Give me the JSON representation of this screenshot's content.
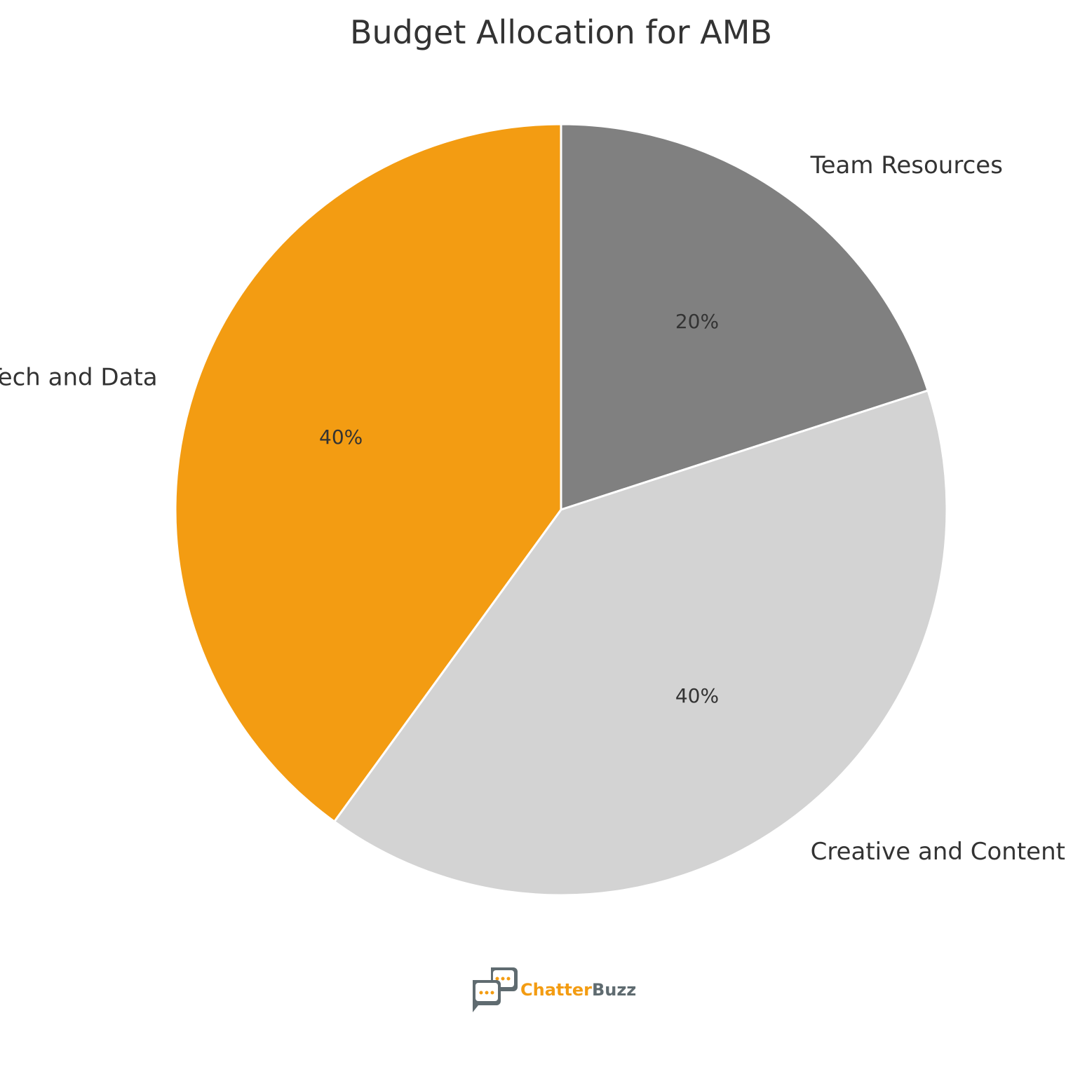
{
  "chart_data": {
    "type": "pie",
    "title": "Budget Allocation for AMB",
    "slices": [
      {
        "label": "Team Resources",
        "value": 20,
        "pct_label": "20%",
        "color": "#808080"
      },
      {
        "label": "Creative and Content",
        "value": 40,
        "pct_label": "40%",
        "color": "#d3d3d3"
      },
      {
        "label": "Tech and Data",
        "value": 40,
        "pct_label": "40%",
        "color": "#f39c12"
      }
    ],
    "start_angle": "12 o'clock",
    "direction": "clockwise",
    "edge_color": "#ffffff"
  },
  "logo": {
    "part1": "Chatter",
    "part2": "Buzz",
    "color1": "#f39c12",
    "color2": "#5f6b70",
    "icon": "chat-bubbles-icon"
  }
}
